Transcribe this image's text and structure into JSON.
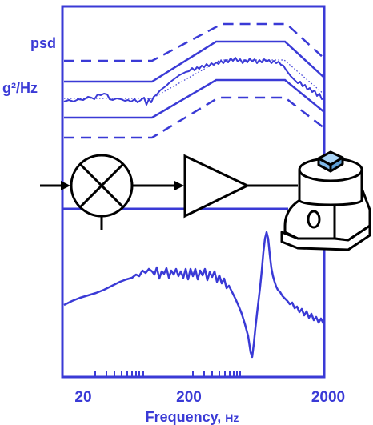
{
  "labels": {
    "psd": "psd",
    "units": "g²/Hz",
    "frequency": "Frequency, ",
    "frequency_unit": "Hz",
    "tick_20": "20",
    "tick_200": "200",
    "tick_2000": "2000"
  },
  "colors": {
    "blue": "#3a3ad6",
    "black": "#000000",
    "shaker_body": "#ffffff",
    "sensor_cube": "#a9d3f5"
  },
  "icons": {
    "mixer": "multiplier-circle-icon",
    "amplifier": "amplifier-triangle-icon",
    "shaker": "vibration-shaker-icon"
  }
}
